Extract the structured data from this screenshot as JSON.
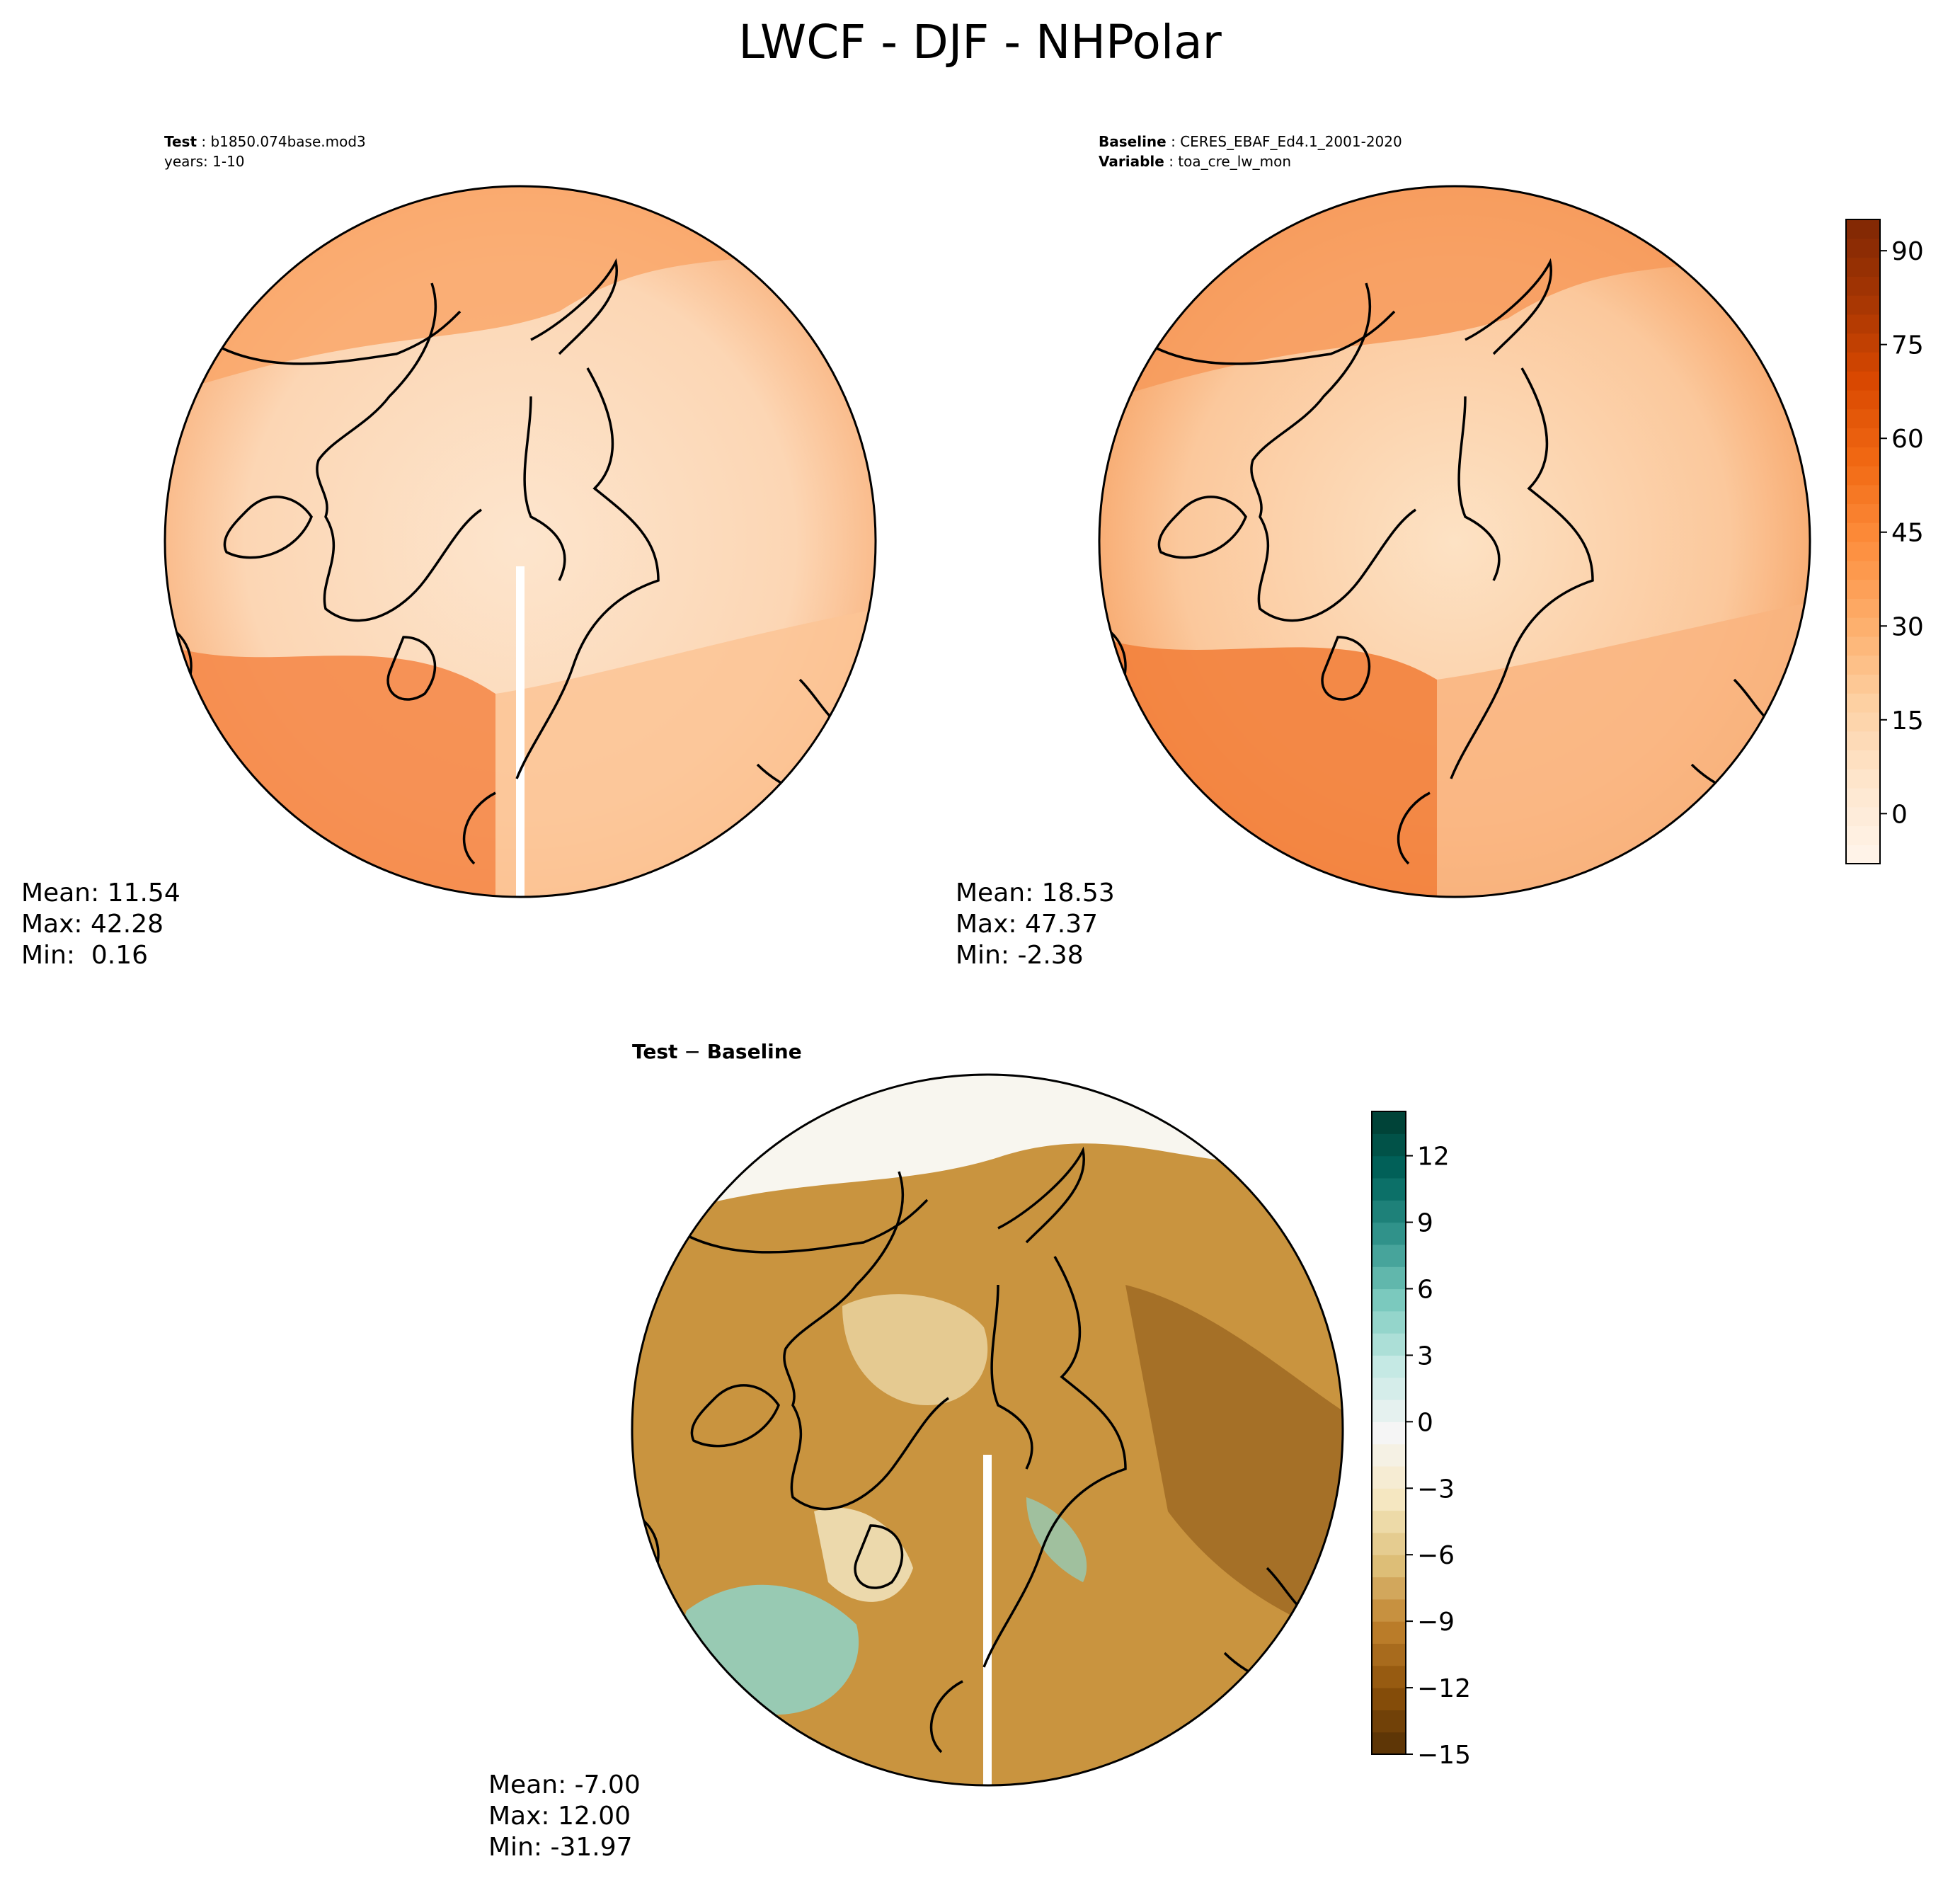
{
  "title": "LWCF - DJF - NHPolar",
  "panels": {
    "test": {
      "label_bold": "Test",
      "label_value": "b1850.074base.mod3",
      "line2": "years: 1-10",
      "stats": {
        "mean": "Mean: 11.54",
        "max": "Max: 42.28",
        "min": "Min:  0.16"
      }
    },
    "baseline": {
      "label_bold": "Baseline",
      "label_value": "CERES_EBAF_Ed4.1_2001-2020",
      "line2_bold": "Variable",
      "line2_value": "toa_cre_lw_mon",
      "stats": {
        "mean": "Mean: 18.53",
        "max": "Max: 47.37",
        "min": "Min: -2.38"
      }
    },
    "diff": {
      "label_bold": "Test",
      "label_op": " − ",
      "label_bold2": "Baseline",
      "stats": {
        "mean": "Mean: -7.00",
        "max": "Max: 12.00",
        "min": "Min: -31.97"
      }
    }
  },
  "colorbars": {
    "main": {
      "range": [
        -8,
        95
      ],
      "ticks": [
        "90",
        "75",
        "60",
        "45",
        "30",
        "15",
        "0"
      ],
      "tick_values": [
        90,
        75,
        60,
        45,
        30,
        15,
        0
      ],
      "colors": [
        "#fff5eb",
        "#fee6ce",
        "#fdd0a2",
        "#fdae6b",
        "#fd8d3c",
        "#f16913",
        "#d94801",
        "#a63603",
        "#7f2704"
      ]
    },
    "diff": {
      "range": [
        -15,
        14
      ],
      "ticks": [
        "12",
        "9",
        "6",
        "3",
        "0",
        "−3",
        "−6",
        "−9",
        "−12",
        "−15"
      ],
      "tick_values": [
        12,
        9,
        6,
        3,
        0,
        -3,
        -6,
        -9,
        -12,
        -15
      ],
      "colors": [
        "#543005",
        "#8c510a",
        "#bf812d",
        "#dfc27d",
        "#f6e8c3",
        "#f5f5f5",
        "#c7eae5",
        "#80cdc1",
        "#35978f",
        "#01665e",
        "#003c30"
      ]
    }
  },
  "map_colors": {
    "test": {
      "north": "#f9a76a",
      "center": "#fde5cd",
      "south": "#f58a4a",
      "east": "#fcd6b4"
    },
    "baseline": {
      "north": "#f79a5a",
      "center": "#fde2c4",
      "south": "#f2813c",
      "east": "#fbc89c"
    },
    "diff": {
      "base": "#c9943f",
      "light": "#e8cf9a",
      "dark": "#8c5a16",
      "teal": "#8fd3c8",
      "white": "#f8f6ef"
    }
  }
}
